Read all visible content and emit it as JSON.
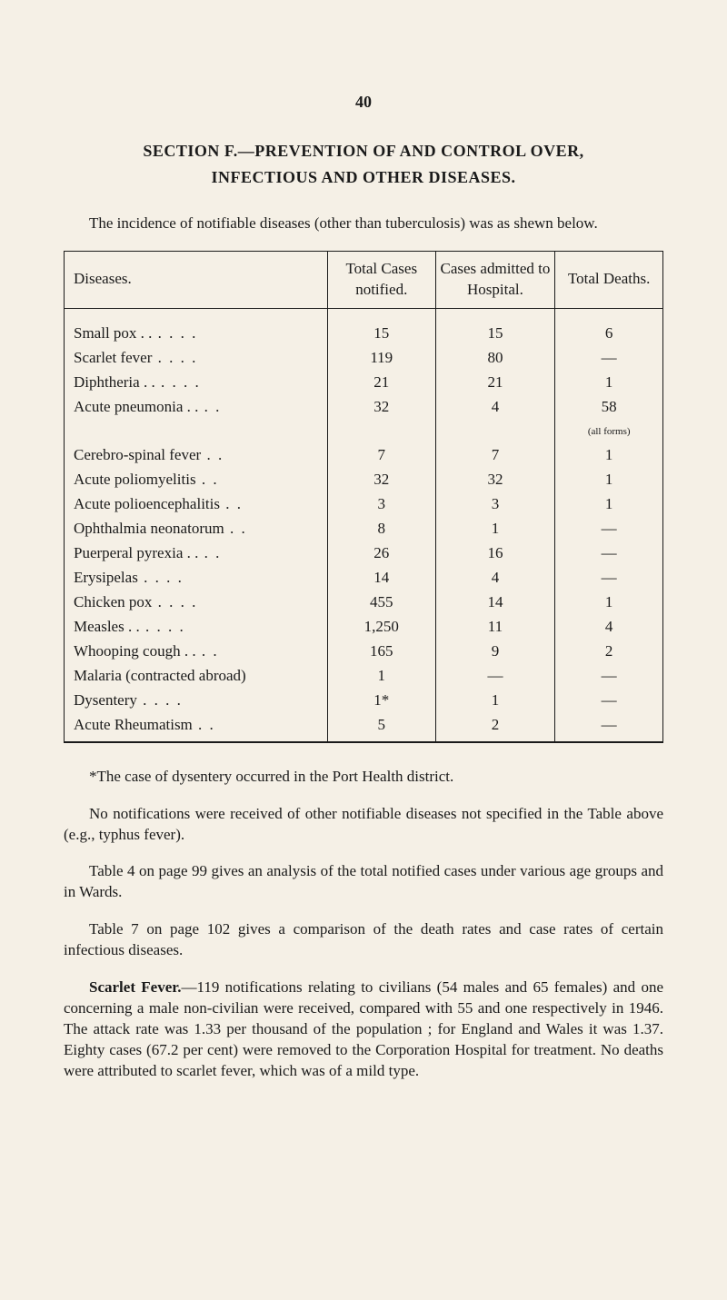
{
  "pageNumber": "40",
  "sectionTitle": "SECTION F.—PREVENTION OF AND CONTROL OVER,",
  "sectionSubtitle": "INFECTIOUS AND OTHER DISEASES.",
  "intro": "The incidence of notifiable diseases (other than tuberculosis) was as shewn below.",
  "table": {
    "headers": {
      "diseases": "Diseases.",
      "totalCases": "Total Cases notified.",
      "admitted": "Cases admitted to Hospital.",
      "deaths": "Total Deaths."
    },
    "note": "(all forms)",
    "rows": [
      {
        "name": "Small pox  . .",
        "dots": ". .      . .",
        "c1": "15",
        "c2": "15",
        "c3": "6"
      },
      {
        "name": "Scarlet fever",
        "dots": ". .      . .",
        "c1": "119",
        "c2": "80",
        "c3": "—"
      },
      {
        "name": "Diphtheria  . .",
        "dots": ". .      . .",
        "c1": "21",
        "c2": "21",
        "c3": "1"
      },
      {
        "name": "Acute pneumonia  . .",
        "dots": ". .",
        "c1": "32",
        "c2": "4",
        "c3": "58"
      },
      {
        "name": "Cerebro-spinal fever",
        "dots": ". .",
        "c1": "7",
        "c2": "7",
        "c3": "1"
      },
      {
        "name": "Acute poliomyelitis",
        "dots": ". .",
        "c1": "32",
        "c2": "32",
        "c3": "1"
      },
      {
        "name": "Acute polioencephalitis",
        "dots": ". .",
        "c1": "3",
        "c2": "3",
        "c3": "1"
      },
      {
        "name": "Ophthalmia neonatorum",
        "dots": ". .",
        "c1": "8",
        "c2": "1",
        "c3": "—"
      },
      {
        "name": "Puerperal pyrexia  . .",
        "dots": ". .",
        "c1": "26",
        "c2": "16",
        "c3": "—"
      },
      {
        "name": "Erysipelas",
        "dots": ". .      . .",
        "c1": "14",
        "c2": "4",
        "c3": "—"
      },
      {
        "name": "Chicken pox",
        "dots": ". .      . .",
        "c1": "455",
        "c2": "14",
        "c3": "1"
      },
      {
        "name": "Measles       . .",
        "dots": ". .      . .",
        "c1": "1,250",
        "c2": "11",
        "c3": "4"
      },
      {
        "name": "Whooping cough   . .",
        "dots": ". .",
        "c1": "165",
        "c2": "9",
        "c3": "2"
      },
      {
        "name": "Malaria (contracted abroad)",
        "dots": "",
        "c1": "1",
        "c2": "—",
        "c3": "—"
      },
      {
        "name": "Dysentery",
        "dots": ". .      . .",
        "c1": "1*",
        "c2": "1",
        "c3": "—"
      },
      {
        "name": "Acute Rheumatism",
        "dots": ". .",
        "c1": "5",
        "c2": "2",
        "c3": "—"
      }
    ]
  },
  "footnote": "*The case of dysentery occurred in the Port Health district.",
  "para1": "No notifications were received of other notifiable diseases not specified in the Table above (e.g., typhus fever).",
  "para2": "Table 4 on page 99 gives an analysis of the total notified cases under various age groups and in Wards.",
  "para3": "Table 7 on page 102 gives a comparison of the death rates and case rates of certain infectious diseases.",
  "para4_lead": "Scarlet Fever.",
  "para4_rest": "—119 notifications relating to civilians (54 males and 65 females) and one concerning a male non-civilian were received, compared with 55 and one respectively in 1946. The attack rate was 1.33 per thousand of the population ; for England and Wales it was 1.37. Eighty cases (67.2 per cent) were removed to the Corporation Hospital for treatment. No deaths were attributed to scarlet fever, which was of a mild type."
}
